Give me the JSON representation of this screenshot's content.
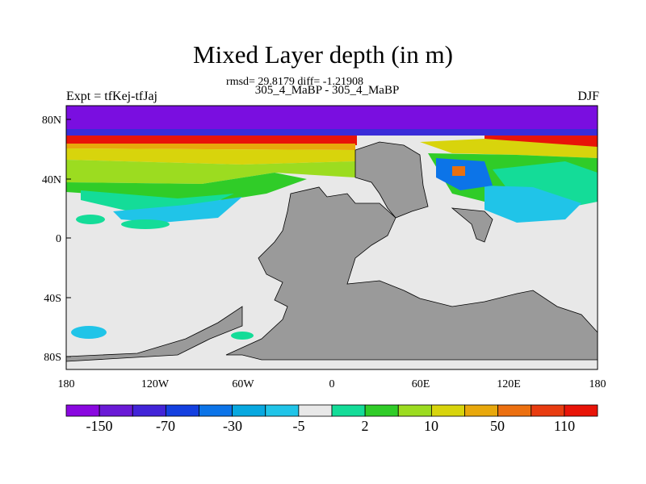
{
  "figure": {
    "title": "Mixed Layer depth (in m)",
    "stats_line": "rmsd= 29.8179 diff= -1.21908",
    "periods_line": "305_4_MaBP - 305_4_MaBP",
    "left_label": "Expt = tfKej-tfJaj",
    "right_label": "DJF"
  },
  "map_axes": {
    "lon_ticks": [
      "180",
      "120W",
      "60W",
      "0",
      "60E",
      "120E",
      "180"
    ],
    "lat_ticks": [
      "80N",
      "40N",
      "0",
      "40S",
      "80S"
    ],
    "lon_range": [
      -180,
      180
    ],
    "lat_range": [
      -90,
      90
    ]
  },
  "colorbar": {
    "colors": [
      "#8a08e0",
      "#6a1ad6",
      "#4224d8",
      "#1440e0",
      "#0c74e8",
      "#08a8e0",
      "#20c4e8",
      "#e8e8e8",
      "#14dc98",
      "#30cc28",
      "#9cdc20",
      "#d8d40c",
      "#e8a80c",
      "#ec7010",
      "#e83c10",
      "#e81408"
    ],
    "labels": [
      "-150",
      "-70",
      "-30",
      "-5",
      "2",
      "10",
      "50",
      "110"
    ]
  },
  "palette": {
    "land": "#9a9a9a",
    "neutral": "#e8e8e8"
  }
}
